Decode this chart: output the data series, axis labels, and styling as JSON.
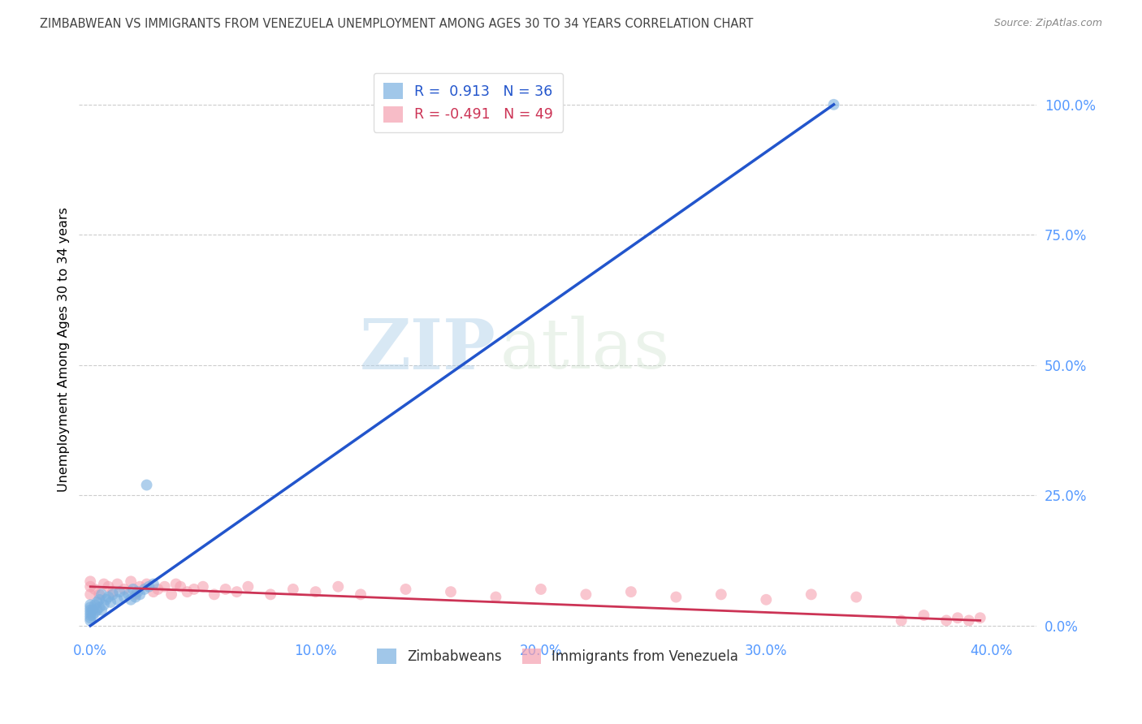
{
  "title": "ZIMBABWEAN VS IMMIGRANTS FROM VENEZUELA UNEMPLOYMENT AMONG AGES 30 TO 34 YEARS CORRELATION CHART",
  "source": "Source: ZipAtlas.com",
  "ylabel": "Unemployment Among Ages 30 to 34 years",
  "watermark_zip": "ZIP",
  "watermark_atlas": "atlas",
  "legend_blue_R": "R =  0.913",
  "legend_blue_N": "N = 36",
  "legend_pink_R": "R = -0.491",
  "legend_pink_N": "N = 49",
  "legend_label_blue": "Zimbabweans",
  "legend_label_pink": "Immigrants from Venezuela",
  "blue_color": "#7ab0e0",
  "pink_color": "#f5a0b0",
  "trendline_blue": "#2255cc",
  "trendline_pink": "#cc3355",
  "right_axis_color": "#5599ff",
  "xaxis_label_color": "#5599ff",
  "title_color": "#444444",
  "source_color": "#888888",
  "blue_scatter_x": [
    0.0,
    0.0,
    0.0,
    0.0,
    0.0,
    0.0,
    0.0,
    0.001,
    0.001,
    0.002,
    0.002,
    0.003,
    0.003,
    0.004,
    0.004,
    0.005,
    0.005,
    0.006,
    0.007,
    0.008,
    0.009,
    0.01,
    0.012,
    0.013,
    0.015,
    0.017,
    0.019,
    0.021,
    0.024,
    0.026,
    0.028,
    0.022,
    0.02,
    0.018,
    0.025,
    0.33
  ],
  "blue_scatter_y": [
    0.01,
    0.015,
    0.02,
    0.025,
    0.03,
    0.035,
    0.04,
    0.02,
    0.03,
    0.025,
    0.04,
    0.03,
    0.045,
    0.035,
    0.05,
    0.03,
    0.06,
    0.04,
    0.05,
    0.055,
    0.045,
    0.06,
    0.05,
    0.065,
    0.055,
    0.06,
    0.07,
    0.065,
    0.07,
    0.075,
    0.08,
    0.06,
    0.055,
    0.05,
    0.27,
    1.0
  ],
  "pink_scatter_x": [
    0.0,
    0.0,
    0.0,
    0.002,
    0.004,
    0.006,
    0.008,
    0.01,
    0.012,
    0.015,
    0.018,
    0.02,
    0.022,
    0.025,
    0.028,
    0.03,
    0.033,
    0.036,
    0.038,
    0.04,
    0.043,
    0.046,
    0.05,
    0.055,
    0.06,
    0.065,
    0.07,
    0.08,
    0.09,
    0.1,
    0.11,
    0.12,
    0.14,
    0.16,
    0.18,
    0.2,
    0.22,
    0.24,
    0.26,
    0.28,
    0.3,
    0.32,
    0.34,
    0.36,
    0.37,
    0.38,
    0.385,
    0.39,
    0.395
  ],
  "pink_scatter_y": [
    0.06,
    0.075,
    0.085,
    0.07,
    0.06,
    0.08,
    0.075,
    0.065,
    0.08,
    0.07,
    0.085,
    0.06,
    0.075,
    0.08,
    0.065,
    0.07,
    0.075,
    0.06,
    0.08,
    0.075,
    0.065,
    0.07,
    0.075,
    0.06,
    0.07,
    0.065,
    0.075,
    0.06,
    0.07,
    0.065,
    0.075,
    0.06,
    0.07,
    0.065,
    0.055,
    0.07,
    0.06,
    0.065,
    0.055,
    0.06,
    0.05,
    0.06,
    0.055,
    0.01,
    0.02,
    0.01,
    0.015,
    0.01,
    0.015
  ],
  "blue_trend_x": [
    0.0,
    0.33
  ],
  "blue_trend_y": [
    0.0,
    1.0
  ],
  "pink_trend_x": [
    0.0,
    0.395
  ],
  "pink_trend_y": [
    0.075,
    0.01
  ],
  "xlim": [
    -0.005,
    0.42
  ],
  "ylim": [
    -0.02,
    1.08
  ],
  "xticks": [
    0.0,
    0.1,
    0.2,
    0.3,
    0.4
  ],
  "xtick_labels": [
    "0.0%",
    "10.0%",
    "20.0%",
    "30.0%",
    "40.0%"
  ],
  "yticks_right": [
    0.0,
    0.25,
    0.5,
    0.75,
    1.0
  ],
  "ytick_right_labels": [
    "0.0%",
    "25.0%",
    "50.0%",
    "75.0%",
    "100.0%"
  ],
  "grid_color": "#cccccc",
  "background_color": "#ffffff",
  "figsize": [
    14.06,
    8.92
  ]
}
